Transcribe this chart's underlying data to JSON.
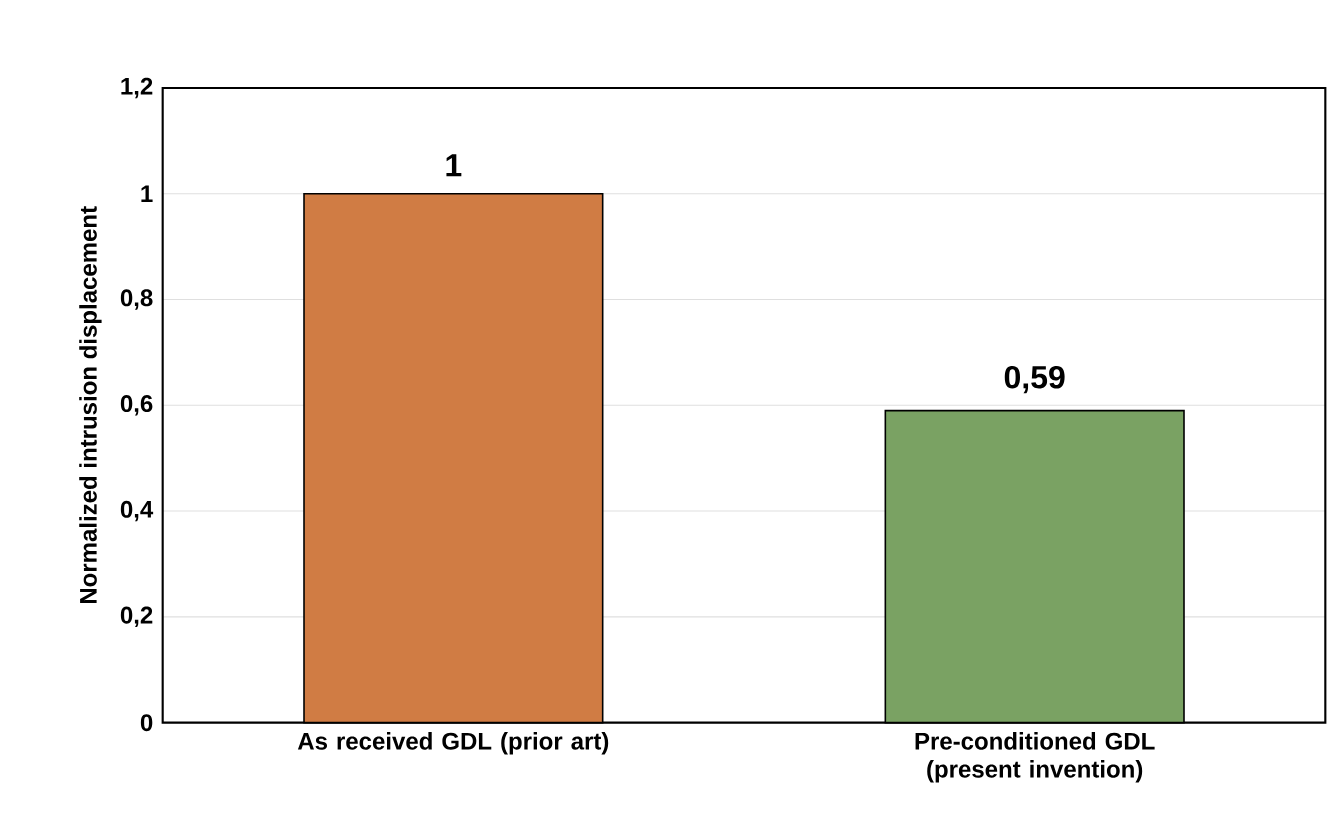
{
  "chart_data": {
    "type": "bar",
    "ylabel": "Normalized intrusion displacement",
    "categories": [
      "As received GDL (prior art)",
      "Pre-conditioned GDL (present invention)"
    ],
    "values": [
      1,
      0.59
    ],
    "colors": [
      "#d07c44",
      "#7aa263"
    ],
    "value_labels": [
      "1",
      "0,59"
    ],
    "ylim": [
      0,
      1.2
    ],
    "yticks": [
      {
        "value": 0,
        "label": "0"
      },
      {
        "value": 0.2,
        "label": "0,2"
      },
      {
        "value": 0.4,
        "label": "0,4"
      },
      {
        "value": 0.6,
        "label": "0,6"
      },
      {
        "value": 0.8,
        "label": "0,8"
      },
      {
        "value": 1,
        "label": "1"
      },
      {
        "value": 1.2,
        "label": "1,2"
      }
    ],
    "grid": "y"
  }
}
